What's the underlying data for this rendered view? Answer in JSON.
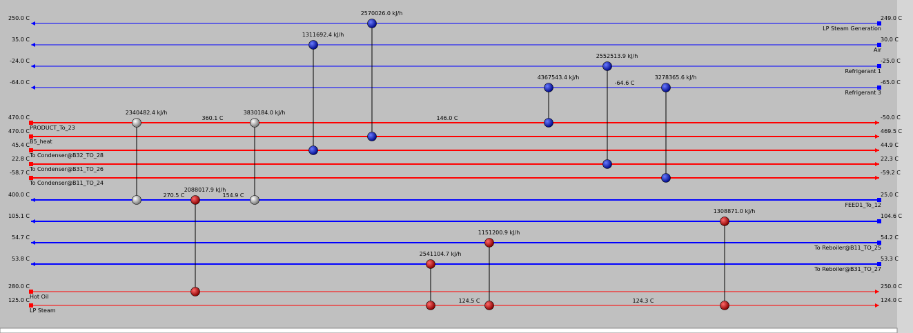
{
  "streams": [
    {
      "color": "blue",
      "left_temp": "250.0 C",
      "right_temp": "249.0 C",
      "name": "LP Steam Generation"
    },
    {
      "color": "blue",
      "left_temp": "35.0 C",
      "right_temp": "30.0 C",
      "name": "Air"
    },
    {
      "color": "blue",
      "left_temp": "-24.0 C",
      "right_temp": "-25.0 C",
      "name": "Refrigerant 1"
    },
    {
      "color": "blue",
      "left_temp": "-64.0 C",
      "right_temp": "-65.0 C",
      "name": "Refrigerant 3",
      "intermediate": [
        "-64.6 C"
      ]
    },
    {
      "color": "red",
      "left_temp": "470.0 C",
      "right_temp": "-50.0 C",
      "name": "PRODUCT_To_23",
      "intermediate": [
        "360.1 C",
        "146.0 C"
      ]
    },
    {
      "color": "red",
      "left_temp": "470.0 C",
      "right_temp": "469.5 C",
      "name": "B5_heat"
    },
    {
      "color": "red",
      "left_temp": "45.4 C",
      "right_temp": "44.9 C",
      "name": "To Condenser@B32_TO_28"
    },
    {
      "color": "red",
      "left_temp": "22.8 C",
      "right_temp": "22.3 C",
      "name": "To Condenser@B31_TO_26"
    },
    {
      "color": "red",
      "left_temp": "-58.7 C",
      "right_temp": "-59.2 C",
      "name": "To Condenser@B11_TO_24"
    },
    {
      "color": "blue",
      "left_temp": "400.0 C",
      "right_temp": "25.0 C",
      "name": "FEED1_To_12",
      "intermediate": [
        "270.5 C",
        "154.9 C"
      ]
    },
    {
      "color": "blue",
      "left_temp": "105.1 C",
      "right_temp": "104.6 C"
    },
    {
      "color": "blue",
      "left_temp": "54.7 C",
      "right_temp": "54.2 C",
      "name": "To Reboiler@B11_TO_25"
    },
    {
      "color": "blue",
      "left_temp": "53.8 C",
      "right_temp": "53.3 C",
      "name": "To Reboiler@B31_TO_27"
    },
    {
      "color": "red",
      "left_temp": "280.0 C",
      "right_temp": "250.0 C",
      "name": "Hot Oil"
    },
    {
      "color": "red",
      "left_temp": "125.0 C",
      "right_temp": "124.0 C",
      "name": "LP Steam",
      "intermediate": [
        "124.5 C",
        "124.3 C"
      ]
    }
  ],
  "exchangers": [
    {
      "duty": "2570026.0 kJ/h",
      "kind": "cooler"
    },
    {
      "duty": "1311692.4 kJ/h",
      "kind": "cooler"
    },
    {
      "duty": "2552513.9 kJ/h",
      "kind": "cooler"
    },
    {
      "duty": "4367543.4 kJ/h",
      "kind": "cooler"
    },
    {
      "duty": "3278365.6 kJ/h",
      "kind": "cooler"
    },
    {
      "duty": "2340482.4 kJ/h",
      "kind": "process"
    },
    {
      "duty": "3830184.0 kJ/h",
      "kind": "process"
    },
    {
      "duty": "2088017.9 kJ/h",
      "kind": "heater"
    },
    {
      "duty": "1308871.0 kJ/h",
      "kind": "heater"
    },
    {
      "duty": "1151200.9 kJ/h",
      "kind": "heater"
    },
    {
      "duty": "2541104.7 kJ/h",
      "kind": "heater"
    }
  ]
}
